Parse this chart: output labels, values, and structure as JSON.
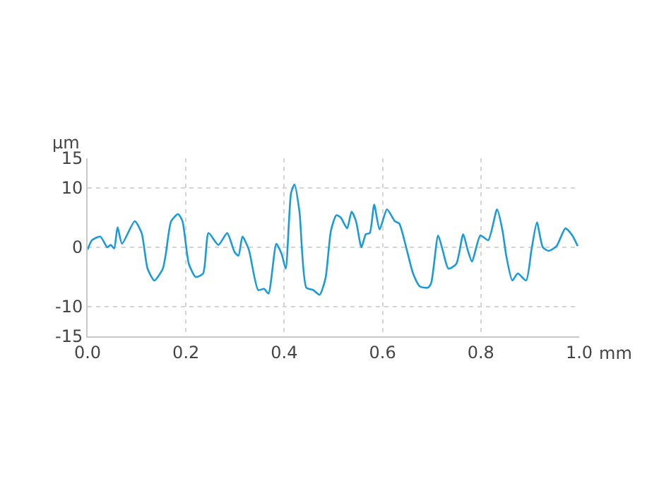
{
  "chart_data": {
    "type": "line",
    "xlabel": "mm",
    "ylabel": "µm",
    "xlim": [
      0,
      1.0
    ],
    "xticks": [
      {
        "value": 0,
        "label": "0.0"
      },
      0.2,
      0.4,
      0.6,
      0.8,
      {
        "value": 1.0,
        "label": "1.0"
      }
    ],
    "ylim": [
      -15,
      15
    ],
    "yticks": [
      -15,
      -10,
      0,
      10,
      15
    ],
    "grid": true,
    "marker": "none",
    "line_style": "solid",
    "x": [
      0,
      0.009,
      0.026,
      0.04,
      0.047,
      0.054,
      0.061,
      0.07,
      0.096,
      0.11,
      0.122,
      0.136,
      0.153,
      0.159,
      0.17,
      0.184,
      0.193,
      0.206,
      0.22,
      0.235,
      0.246,
      0.266,
      0.284,
      0.299,
      0.307,
      0.315,
      0.328,
      0.347,
      0.359,
      0.368,
      0.384,
      0.395,
      0.403,
      0.414,
      0.421,
      0.431,
      0.445,
      0.459,
      0.472,
      0.484,
      0.495,
      0.506,
      0.515,
      0.528,
      0.537,
      0.546,
      0.557,
      0.566,
      0.574,
      0.583,
      0.594,
      0.609,
      0.625,
      0.634,
      0.648,
      0.662,
      0.676,
      0.692,
      0.699,
      0.713,
      0.722,
      0.734,
      0.75,
      0.764,
      0.773,
      0.782,
      0.799,
      0.815,
      0.833,
      0.844,
      0.852,
      0.864,
      0.875,
      0.892,
      0.903,
      0.914,
      0.926,
      0.938,
      0.954,
      0.972,
      0.986,
      0.997
    ],
    "series": [
      {
        "color": "#1a9bd7",
        "values": [
          -0.4,
          1.2,
          1.8,
          0,
          0.4,
          -0.2,
          3.4,
          0.6,
          4.4,
          2.4,
          -3.6,
          -5.6,
          -3.6,
          -1.2,
          4.4,
          5.6,
          4.4,
          -2.8,
          -5,
          -4.4,
          2.4,
          0.4,
          2.4,
          -0.8,
          -1.4,
          1.8,
          -0.4,
          -7.2,
          -7,
          -7.8,
          0.6,
          -1.2,
          -3.6,
          9.2,
          10.6,
          6,
          -6.8,
          -7.2,
          -8,
          -5.2,
          2.8,
          5.4,
          5,
          3.2,
          6,
          4.4,
          0,
          2.2,
          2.4,
          7.2,
          3,
          6.4,
          4.4,
          4,
          0,
          -4.4,
          -6.6,
          -6.8,
          -6,
          2,
          -0.4,
          -3.6,
          -2.8,
          2.2,
          -0.4,
          -2.4,
          2,
          1.2,
          6.4,
          2.8,
          -1.6,
          -5.6,
          -4.4,
          -5.6,
          -0.4,
          4.2,
          0,
          -0.6,
          0.2,
          3.2,
          2,
          0.2
        ]
      }
    ]
  }
}
